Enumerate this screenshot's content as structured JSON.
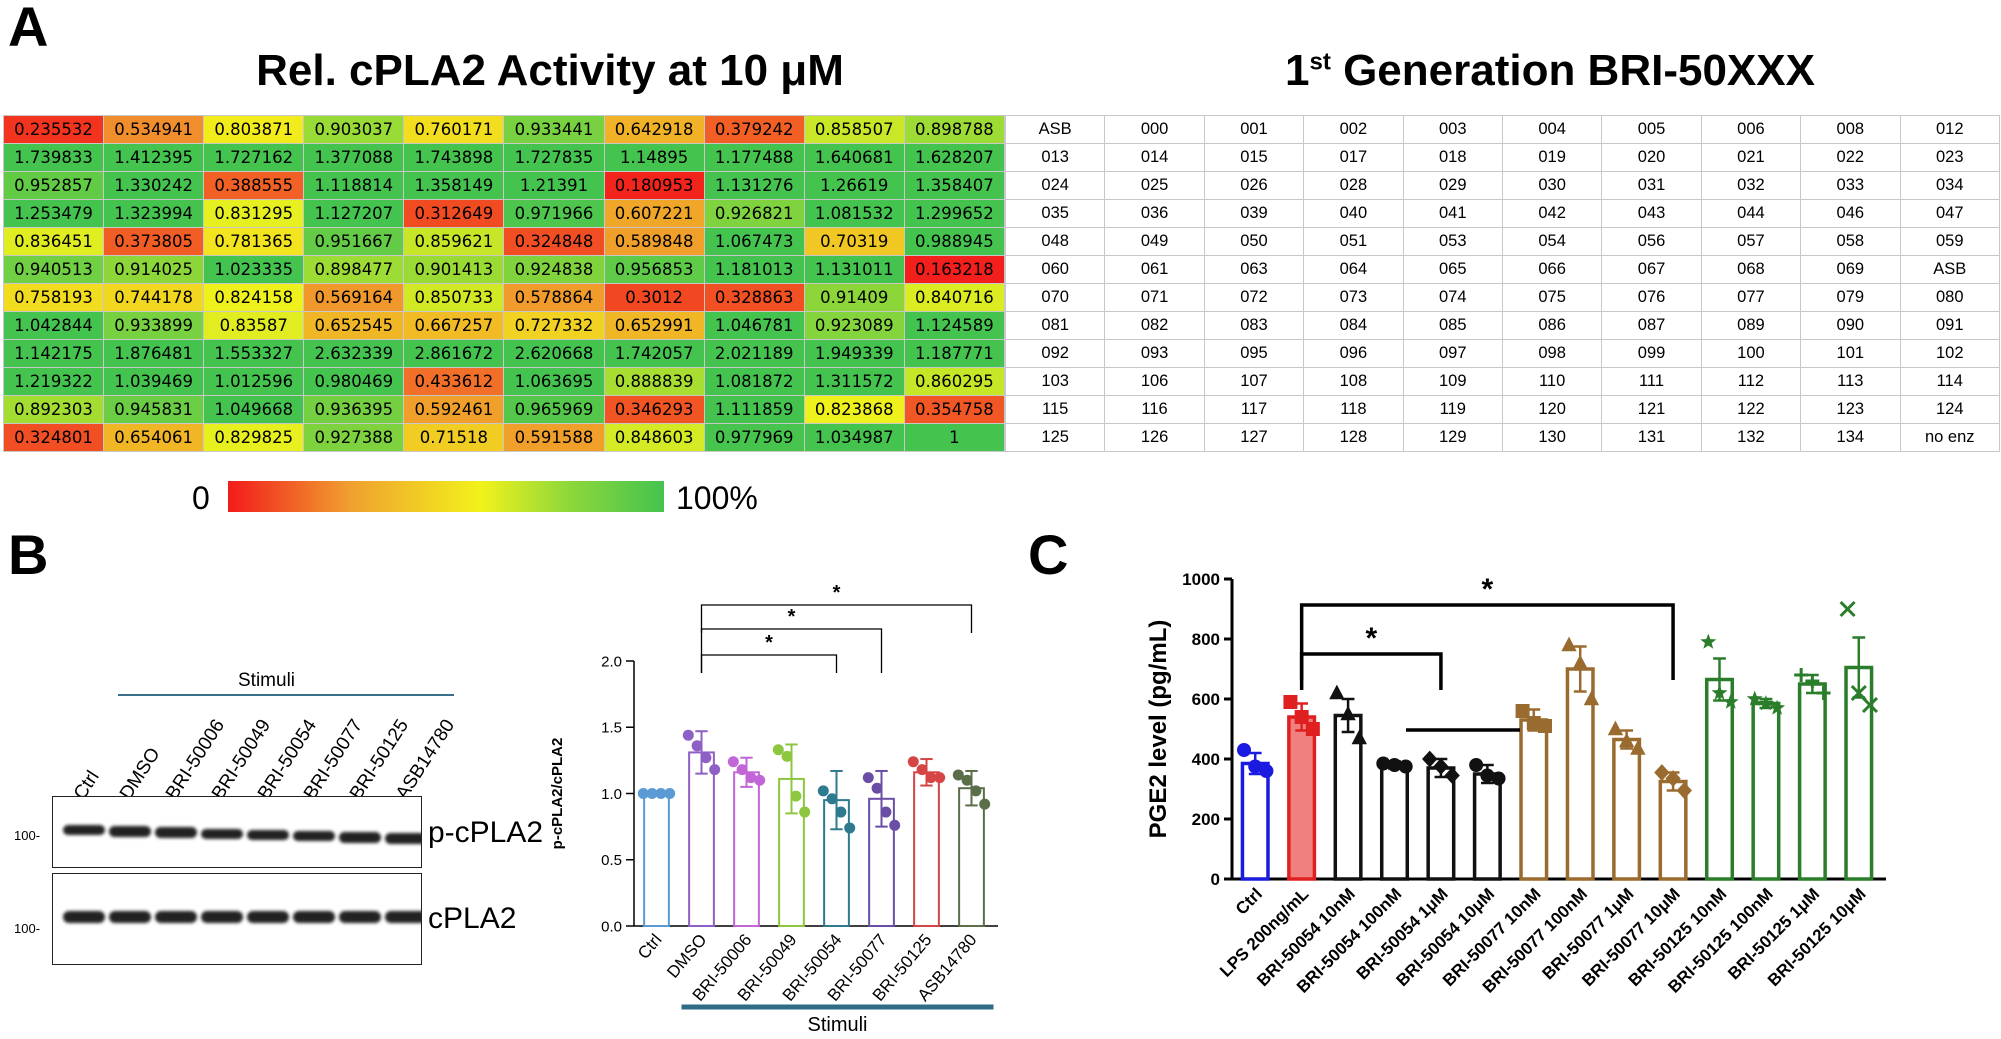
{
  "panel_letters": {
    "a": "A",
    "b": "B",
    "c": "C"
  },
  "heatmap": {
    "title": "Rel. cPLA2 Activity at 10 μM",
    "values": [
      [
        "0.235532",
        "0.534941",
        "0.803871",
        "0.903037",
        "0.760171",
        "0.933441",
        "0.642918",
        "0.379242",
        "0.858507",
        "0.898788"
      ],
      [
        "1.739833",
        "1.412395",
        "1.727162",
        "1.377088",
        "1.743898",
        "1.727835",
        "1.14895",
        "1.177488",
        "1.640681",
        "1.628207"
      ],
      [
        "0.952857",
        "1.330242",
        "0.388555",
        "1.118814",
        "1.358149",
        "1.21391",
        "0.180953",
        "1.131276",
        "1.26619",
        "1.358407"
      ],
      [
        "1.253479",
        "1.323994",
        "0.831295",
        "1.127207",
        "0.312649",
        "0.971966",
        "0.607221",
        "0.926821",
        "1.081532",
        "1.299652"
      ],
      [
        "0.836451",
        "0.373805",
        "0.781365",
        "0.951667",
        "0.859621",
        "0.324848",
        "0.589848",
        "1.067473",
        "0.70319",
        "0.988945"
      ],
      [
        "0.940513",
        "0.914025",
        "1.023335",
        "0.898477",
        "0.901413",
        "0.924838",
        "0.956853",
        "1.181013",
        "1.131011",
        "0.163218"
      ],
      [
        "0.758193",
        "0.744178",
        "0.824158",
        "0.569164",
        "0.850733",
        "0.578864",
        "0.3012",
        "0.328863",
        "0.91409",
        "0.840716"
      ],
      [
        "1.042844",
        "0.933899",
        "0.83587",
        "0.652545",
        "0.667257",
        "0.727332",
        "0.652991",
        "1.046781",
        "0.923089",
        "1.124589"
      ],
      [
        "1.142175",
        "1.876481",
        "1.553327",
        "2.632339",
        "2.861672",
        "2.620668",
        "1.742057",
        "2.021189",
        "1.949339",
        "1.187771"
      ],
      [
        "1.219322",
        "1.039469",
        "1.012596",
        "0.980469",
        "0.433612",
        "1.063695",
        "0.888839",
        "1.081872",
        "1.311572",
        "0.860295"
      ],
      [
        "0.892303",
        "0.945831",
        "1.049668",
        "0.936395",
        "0.592461",
        "0.965969",
        "0.346293",
        "1.111859",
        "0.823868",
        "0.354758"
      ],
      [
        "0.324801",
        "0.654061",
        "0.829825",
        "0.927388",
        "0.71518",
        "0.591588",
        "0.848603",
        "0.977969",
        "1.034987",
        "1"
      ]
    ],
    "scale_min_label": "0",
    "scale_max_label": "100%",
    "colors": {
      "low": "#f21b1b",
      "mid": "#f2f21b",
      "high": "#45c34f"
    }
  },
  "id_table": {
    "title_prefix": "1",
    "title_sup": "st",
    "title_suffix": " Generation BRI-50XXX",
    "ids": [
      [
        "ASB",
        "000",
        "001",
        "002",
        "003",
        "004",
        "005",
        "006",
        "008",
        "012"
      ],
      [
        "013",
        "014",
        "015",
        "017",
        "018",
        "019",
        "020",
        "021",
        "022",
        "023"
      ],
      [
        "024",
        "025",
        "026",
        "028",
        "029",
        "030",
        "031",
        "032",
        "033",
        "034"
      ],
      [
        "035",
        "036",
        "039",
        "040",
        "041",
        "042",
        "043",
        "044",
        "046",
        "047"
      ],
      [
        "048",
        "049",
        "050",
        "051",
        "053",
        "054",
        "056",
        "057",
        "058",
        "059"
      ],
      [
        "060",
        "061",
        "063",
        "064",
        "065",
        "066",
        "067",
        "068",
        "069",
        "ASB"
      ],
      [
        "070",
        "071",
        "072",
        "073",
        "074",
        "075",
        "076",
        "077",
        "079",
        "080"
      ],
      [
        "081",
        "082",
        "083",
        "084",
        "085",
        "086",
        "087",
        "089",
        "090",
        "091"
      ],
      [
        "092",
        "093",
        "095",
        "096",
        "097",
        "098",
        "099",
        "100",
        "101",
        "102"
      ],
      [
        "103",
        "106",
        "107",
        "108",
        "109",
        "110",
        "111",
        "112",
        "113",
        "114"
      ],
      [
        "115",
        "116",
        "117",
        "118",
        "119",
        "120",
        "121",
        "122",
        "123",
        "124"
      ],
      [
        "125",
        "126",
        "127",
        "128",
        "129",
        "130",
        "131",
        "132",
        "134",
        "no enz"
      ]
    ]
  },
  "western": {
    "stimuli_label": "Stimuli",
    "lanes": [
      "Ctrl",
      "DMSO",
      "BRI-50006",
      "BRI-50049",
      "BRI-50054",
      "BRI-50077",
      "BRI-50125",
      "ASB14780"
    ],
    "mw_label_top": "100-",
    "mw_label_bottom": "100-",
    "protein_top": "p-cPLA2",
    "protein_bottom": "cPLA2"
  },
  "chart_data": [
    {
      "type": "bar",
      "panel": "B",
      "ylabel": "p-cPLA2/cPLA2",
      "xlabel": "",
      "ylim": [
        0,
        2.0
      ],
      "yticks": [
        "0.0",
        "0.5",
        "1.0",
        "1.5",
        "2.0"
      ],
      "categories": [
        "Ctrl",
        "DMSO",
        "BRI-50006",
        "BRI-50049",
        "BRI-50054",
        "BRI-50077",
        "BRI-50125",
        "ASB14780"
      ],
      "values": [
        1.0,
        1.31,
        1.16,
        1.11,
        0.95,
        0.96,
        1.16,
        1.04
      ],
      "errors": [
        0.01,
        0.16,
        0.11,
        0.26,
        0.22,
        0.21,
        0.1,
        0.13
      ],
      "colors": [
        "#5b9bd5",
        "#8e5fc4",
        "#c265d6",
        "#8dc63f",
        "#2e7a8f",
        "#6a4ea6",
        "#d64545",
        "#5a6e4a"
      ],
      "points": [
        [
          1.0,
          1.0,
          1.0,
          1.0
        ],
        [
          1.44,
          1.36,
          1.27,
          1.18
        ],
        [
          1.24,
          1.18,
          1.12,
          1.1
        ],
        [
          1.33,
          1.28,
          0.98,
          0.86
        ],
        [
          1.02,
          0.96,
          0.86,
          0.74
        ],
        [
          1.12,
          1.04,
          0.86,
          0.76
        ],
        [
          1.24,
          1.18,
          1.12,
          1.12
        ],
        [
          1.14,
          1.1,
          1.02,
          0.92
        ]
      ],
      "significance": [
        {
          "from": "DMSO",
          "to": "BRI-50054",
          "label": "*"
        },
        {
          "from": "DMSO",
          "to": "BRI-50077",
          "label": "*"
        },
        {
          "from": "DMSO",
          "to": "ASB14780",
          "label": "*"
        }
      ],
      "group_label": "Stimuli"
    },
    {
      "type": "bar",
      "panel": "C",
      "ylabel": "PGE2 level (pg/mL)",
      "xlabel": "",
      "ylim": [
        0,
        1000
      ],
      "yticks": [
        "0",
        "200",
        "400",
        "600",
        "800",
        "1000"
      ],
      "categories": [
        "Ctrl",
        "LPS 200ng/mL",
        "BRI-50054 10nM",
        "BRI-50054 100nM",
        "BRI-50054 1μM",
        "BRI-50054 10μM",
        "BRI-50077 10nM",
        "BRI-50077 100nM",
        "BRI-50077 1μM",
        "BRI-50077 10μM",
        "BRI-50125 10nM",
        "BRI-50125 100nM",
        "BRI-50125 1μM",
        "BRI-50125 10μM"
      ],
      "values": [
        385,
        540,
        545,
        380,
        370,
        350,
        530,
        700,
        465,
        325,
        665,
        585,
        650,
        705
      ],
      "errors": [
        35,
        45,
        55,
        12,
        30,
        30,
        35,
        75,
        30,
        30,
        70,
        15,
        30,
        100
      ],
      "colors": [
        "#1a1ae0",
        "#e02020",
        "#111111",
        "#111111",
        "#111111",
        "#111111",
        "#9a6b2e",
        "#9a6b2e",
        "#9a6b2e",
        "#9a6b2e",
        "#2a7d2a",
        "#2a7d2a",
        "#2a7d2a",
        "#2a7d2a"
      ],
      "bar_fill": [
        "#ffffff",
        "#f08080",
        "#ffffff",
        "#ffffff",
        "#ffffff",
        "#ffffff",
        "#ffffff",
        "#ffffff",
        "#ffffff",
        "#ffffff",
        "#ffffff",
        "#ffffff",
        "#ffffff",
        "#ffffff"
      ],
      "markers": [
        "circle",
        "square",
        "triangle",
        "circle",
        "diamond",
        "circle",
        "square",
        "triangle",
        "triangle",
        "diamond",
        "star",
        "star",
        "plus",
        "cross"
      ],
      "points": [
        [
          430,
          375,
          360
        ],
        [
          590,
          540,
          500
        ],
        [
          620,
          550,
          470
        ],
        [
          385,
          380,
          375
        ],
        [
          400,
          375,
          345
        ],
        [
          380,
          345,
          335
        ],
        [
          560,
          520,
          510
        ],
        [
          780,
          720,
          600
        ],
        [
          500,
          460,
          435
        ],
        [
          355,
          335,
          295
        ],
        [
          790,
          620,
          590
        ],
        [
          600,
          585,
          570
        ],
        [
          680,
          660,
          620
        ],
        [
          900,
          620,
          580
        ]
      ],
      "significance": [
        {
          "from": "LPS 200ng/mL",
          "to": "BRI-50054 1μM",
          "label": "*"
        },
        {
          "from": "LPS 200ng/mL",
          "to": "BRI-50077 10μM",
          "label": "*"
        }
      ]
    }
  ]
}
